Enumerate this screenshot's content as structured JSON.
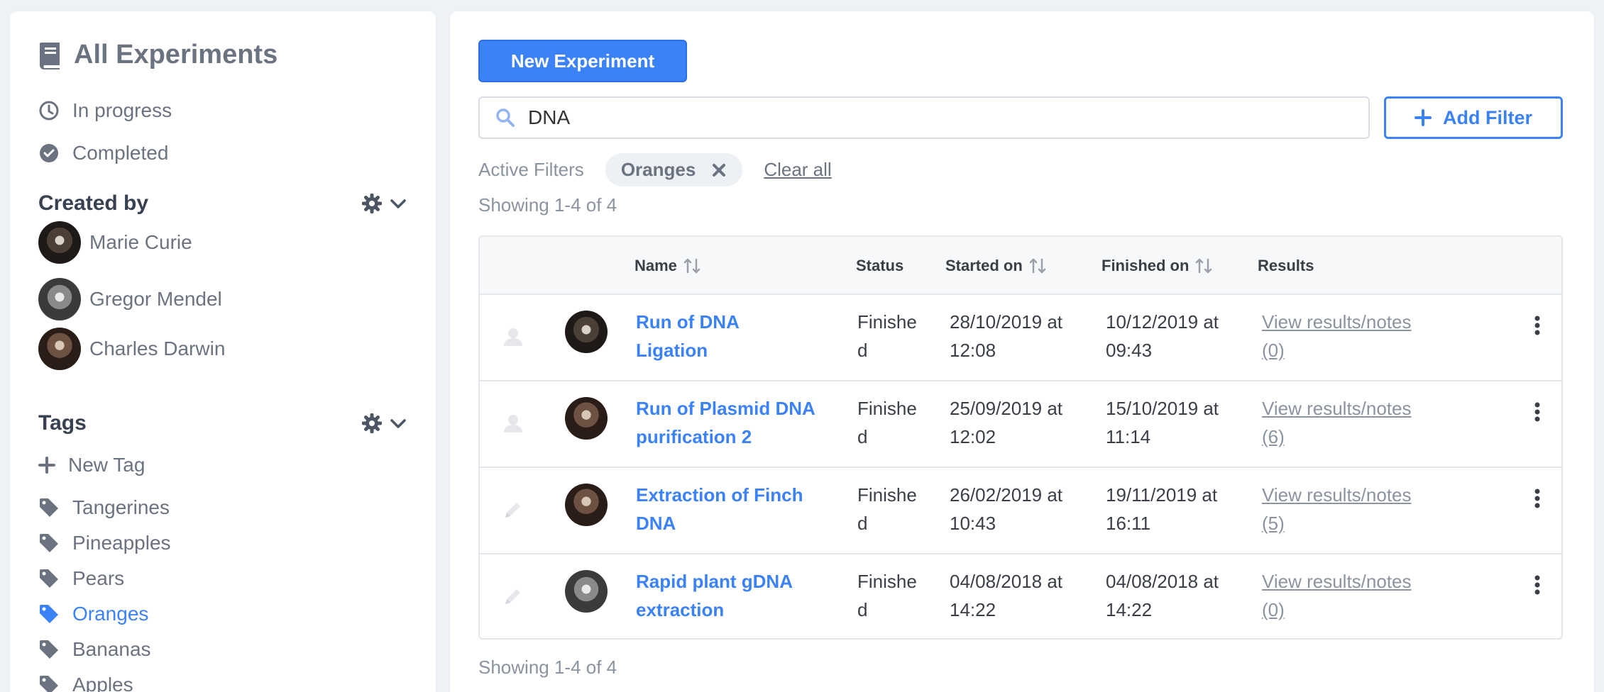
{
  "sidebar": {
    "title": "All Experiments",
    "links": [
      {
        "label": "In progress",
        "icon": "clock-icon"
      },
      {
        "label": "Completed",
        "icon": "check-circle-icon"
      }
    ],
    "created_by": {
      "heading": "Created by",
      "users": [
        {
          "name": "Marie Curie"
        },
        {
          "name": "Gregor Mendel"
        },
        {
          "name": "Charles Darwin"
        }
      ]
    },
    "tags": {
      "heading": "Tags",
      "new_tag": "New Tag",
      "items": [
        {
          "label": "Tangerines",
          "active": false
        },
        {
          "label": "Pineapples",
          "active": false
        },
        {
          "label": "Pears",
          "active": false
        },
        {
          "label": "Oranges",
          "active": true
        },
        {
          "label": "Bananas",
          "active": false
        },
        {
          "label": "Apples",
          "active": false
        }
      ]
    }
  },
  "main": {
    "new_experiment_label": "New Experiment",
    "search": {
      "value": "DNA",
      "placeholder": ""
    },
    "add_filter_label": "Add Filter",
    "active_filters_label": "Active Filters",
    "filter_chip": "Oranges",
    "clear_all": "Clear all",
    "showing_top": "Showing 1-4 of 4",
    "showing_bottom": "Showing 1-4 of 4",
    "table": {
      "headers": {
        "name": "Name",
        "status": "Status",
        "started": "Started on",
        "finished": "Finished on",
        "results": "Results"
      },
      "rows": [
        {
          "name_line1": "Run of DNA Ligation",
          "name_line2": "",
          "status_line1": "Finishe",
          "status_line2": "d",
          "started_line1": "28/10/2019 at",
          "started_line2": "12:08",
          "finished_line1": "10/12/2019 at",
          "finished_line2": "09:43",
          "results_line1": "View results/notes",
          "results_line2": "(0)",
          "icon": "user-icon"
        },
        {
          "name_line1": "Run of Plasmid DNA",
          "name_line2": "purification 2",
          "status_line1": "Finishe",
          "status_line2": "d",
          "started_line1": "25/09/2019 at",
          "started_line2": "12:02",
          "finished_line1": "15/10/2019 at",
          "finished_line2": "11:14",
          "results_line1": "View results/notes",
          "results_line2": "(6)",
          "icon": "user-icon"
        },
        {
          "name_line1": "Extraction of Finch",
          "name_line2": "DNA",
          "status_line1": "Finishe",
          "status_line2": "d",
          "started_line1": "26/02/2019 at",
          "started_line2": "10:43",
          "finished_line1": "19/11/2019 at",
          "finished_line2": "16:11",
          "results_line1": "View results/notes",
          "results_line2": "(5)",
          "icon": "pencil-icon"
        },
        {
          "name_line1": "Rapid plant gDNA",
          "name_line2": "extraction",
          "status_line1": "Finishe",
          "status_line2": "d",
          "started_line1": "04/08/2018 at",
          "started_line2": "14:22",
          "finished_line1": "04/08/2018 at",
          "finished_line2": "14:22",
          "results_line1": "View results/notes",
          "results_line2": "(0)",
          "icon": "pencil-icon"
        }
      ]
    }
  },
  "colors": {
    "accent": "#3b82f6",
    "muted": "#6b7280",
    "background": "#eef2f7"
  }
}
